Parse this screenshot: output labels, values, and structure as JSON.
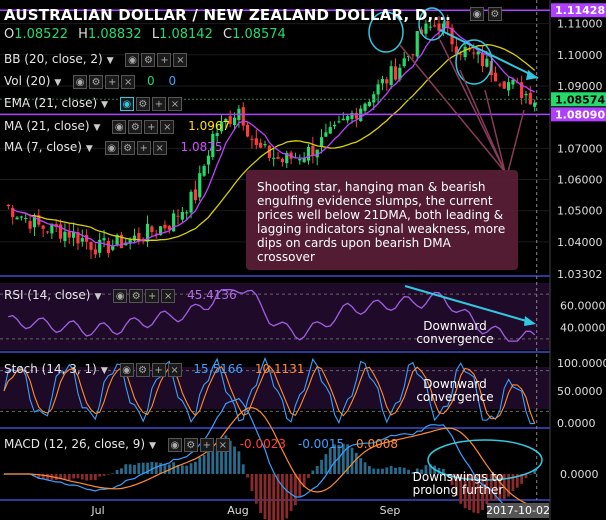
{
  "header": {
    "title": "AUSTRALIAN DOLLAR / NEW ZEALAND DOLLAR, D,...",
    "ohlc": [
      {
        "k": "O",
        "v": "1.08522"
      },
      {
        "k": "H",
        "v": "1.08832"
      },
      {
        "k": "L",
        "v": "1.08142"
      },
      {
        "k": "C",
        "v": "1.08574"
      }
    ]
  },
  "indicators": {
    "bb": "BB (20, close, 2)",
    "vol": "Vol (20)",
    "vol_values": [
      "0",
      "0"
    ],
    "ema": "EMA (21, close)",
    "ma21": "MA (21, close)",
    "ma21_value": "1.0967",
    "ma7": "MA (7, close)",
    "ma7_value": "1.0875"
  },
  "price_axis": {
    "ticks": [
      "1.11000",
      "1.10000",
      "1.09000",
      "1.07000",
      "1.06000",
      "1.05000",
      "1.04000",
      "1.03302"
    ],
    "tag_high": "1.11428",
    "tag_close": "1.08574",
    "tag_low": "1.08090"
  },
  "annotation": "Shooting star, hanging man & bearish engulfing evidence slumps, the current prices well below 21DMA, both leading & lagging indicators signal weakness, more dips on cards upon bearish DMA crossover",
  "rsi": {
    "label": "RSI (14, close)",
    "value": "45.4136",
    "ticks": [
      "60.0000",
      "40.0000"
    ],
    "note": "Downward convergence"
  },
  "stoch": {
    "label": "Stoch (14, 3, 1)",
    "k_value": "15.5166",
    "d_value": "10.1131",
    "ticks": [
      "100.0000",
      "50.0000",
      "0.0000"
    ],
    "note": "Downward convergence"
  },
  "macd": {
    "label": "MACD (12, 26, close, 9)",
    "values": [
      "-0.0023",
      "-0.0015",
      "0.0008"
    ],
    "ticks": [
      "0.0000"
    ],
    "note": "Downswings to prolong further"
  },
  "time_axis": {
    "labels": [
      "Jul",
      "Aug",
      "Sep"
    ],
    "current_date": "2017-10-02"
  },
  "colors": {
    "up": "#26d96b",
    "down": "#ff3b3b",
    "ma_purple": "#c040ff",
    "ma_yellow": "#d8d000",
    "accent_cyan": "#30c8e0",
    "annot_bg": "#5a1e37"
  }
}
